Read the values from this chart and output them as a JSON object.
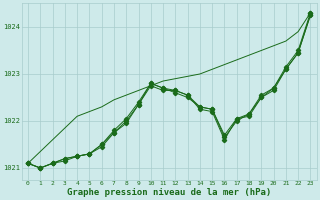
{
  "background_color": "#ceeaea",
  "grid_color": "#a8cccc",
  "line_color": "#1a6b1a",
  "x_values": [
    0,
    1,
    2,
    3,
    4,
    5,
    6,
    7,
    8,
    9,
    10,
    11,
    12,
    13,
    14,
    15,
    16,
    17,
    18,
    19,
    20,
    21,
    22,
    23
  ],
  "series_straight": [
    1021.1,
    1021.35,
    1021.6,
    1021.85,
    1022.1,
    1022.2,
    1022.3,
    1022.45,
    1022.55,
    1022.65,
    1022.75,
    1022.85,
    1022.9,
    1022.95,
    1023.0,
    1023.1,
    1023.2,
    1023.3,
    1023.4,
    1023.5,
    1023.6,
    1023.7,
    1023.9,
    1024.3
  ],
  "series_wavy1": [
    1021.1,
    1021.0,
    1021.1,
    1021.15,
    1021.25,
    1021.3,
    1021.45,
    1021.75,
    1021.95,
    1022.35,
    1022.75,
    1022.65,
    1022.65,
    1022.55,
    1022.25,
    1022.2,
    1021.6,
    1022.05,
    1022.1,
    1022.5,
    1022.65,
    1023.1,
    1023.45,
    1024.25
  ],
  "series_wavy2": [
    1021.1,
    1021.0,
    1021.1,
    1021.2,
    1021.25,
    1021.3,
    1021.5,
    1021.75,
    1022.0,
    1022.35,
    1022.8,
    1022.7,
    1022.65,
    1022.55,
    1022.3,
    1022.25,
    1021.65,
    1022.0,
    1022.15,
    1022.5,
    1022.7,
    1023.15,
    1023.5,
    1024.3
  ],
  "series_wavy3": [
    1021.1,
    1021.0,
    1021.1,
    1021.2,
    1021.25,
    1021.3,
    1021.5,
    1021.8,
    1022.05,
    1022.4,
    1022.8,
    1022.7,
    1022.6,
    1022.5,
    1022.3,
    1022.25,
    1021.7,
    1022.05,
    1022.15,
    1022.55,
    1022.7,
    1023.1,
    1023.45,
    1024.25
  ],
  "ylim_min": 1020.75,
  "ylim_max": 1024.5,
  "yticks": [
    1021,
    1022,
    1023,
    1024
  ],
  "xlabel": "Graphe pression niveau de la mer (hPa)",
  "xlabel_fontsize": 6.5,
  "tick_fontsize": 4.5
}
